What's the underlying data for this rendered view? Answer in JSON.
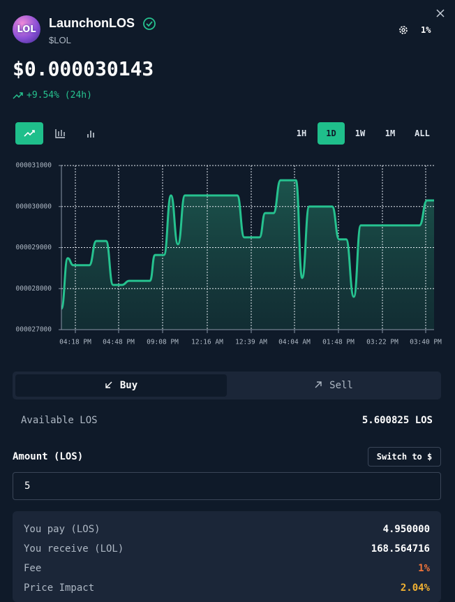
{
  "header": {
    "logo": "LOL",
    "name": "LaunchonLOS",
    "ticker": "$LOL",
    "slippage": "1%"
  },
  "price": "$0.000030143",
  "change": "+9.54% (24h)",
  "timeframes": [
    "1H",
    "1D",
    "1W",
    "1M",
    "ALL"
  ],
  "selected_timeframe": "1D",
  "chart_data": {
    "type": "line",
    "x": [
      0,
      9,
      17,
      40,
      50,
      64,
      74,
      87,
      97,
      127,
      134,
      147,
      157,
      167,
      177,
      252,
      262,
      284,
      292,
      304,
      314,
      336,
      345,
      355,
      388,
      398,
      408,
      419,
      429,
      513,
      524,
      534
    ],
    "series": [
      {
        "color": "#26c28f",
        "values": [
          27510,
          28740,
          28570,
          28570,
          29160,
          29160,
          28090,
          28090,
          28190,
          28190,
          28820,
          28820,
          30270,
          29080,
          30270,
          30270,
          29250,
          29250,
          29840,
          29840,
          30640,
          30640,
          28260,
          30000,
          30000,
          29200,
          29200,
          27800,
          29540,
          29540,
          30150,
          30150
        ]
      }
    ],
    "xlim": [
      0,
      534
    ],
    "ylim": [
      27000,
      31000
    ],
    "yticks": [
      {
        "value": 27000,
        "label": "000027000"
      },
      {
        "value": 28000,
        "label": "000028000"
      },
      {
        "value": 29000,
        "label": "000029000"
      },
      {
        "value": 30000,
        "label": "000030000"
      },
      {
        "value": 31000,
        "label": "000031000"
      }
    ],
    "xticks": [
      {
        "value": 20,
        "label": "04:18 PM"
      },
      {
        "value": 82,
        "label": "04:48 PM"
      },
      {
        "value": 145,
        "label": "09:08 PM"
      },
      {
        "value": 209,
        "label": "12:16 AM"
      },
      {
        "value": 272,
        "label": "12:39 AM"
      },
      {
        "value": 334,
        "label": "04:04 AM"
      },
      {
        "value": 397,
        "label": "01:48 PM"
      },
      {
        "value": 460,
        "label": "03:22 PM"
      },
      {
        "value": 522,
        "label": "03:40 PM"
      }
    ],
    "grid": true
  },
  "trade": {
    "tabs": [
      "Buy",
      "Sell"
    ],
    "selected_tab": "Buy",
    "available_label": "Available LOS",
    "available_value": "5.600825 LOS",
    "amount_label": "Amount (LOS)",
    "switch_button": "Switch to $",
    "amount_input": "5",
    "summary": [
      {
        "label": "You pay (LOS)",
        "value": "4.950000",
        "color": "#ffffff"
      },
      {
        "label": "You receive (LOL)",
        "value": "168.564716",
        "color": "#ffffff"
      },
      {
        "label": "Fee",
        "value": "1%",
        "color": "#f0743a"
      },
      {
        "label": "Price Impact",
        "value": "2.04%",
        "color": "#f2b232"
      }
    ]
  }
}
